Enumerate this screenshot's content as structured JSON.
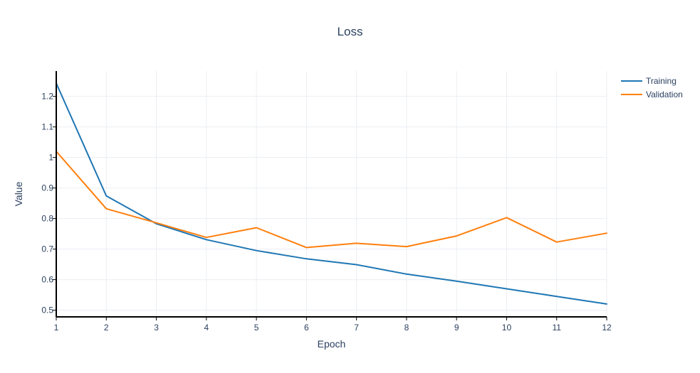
{
  "chart_data": {
    "type": "line",
    "title": "Loss",
    "xlabel": "Epoch",
    "ylabel": "Value",
    "x": [
      1,
      2,
      3,
      4,
      5,
      6,
      7,
      8,
      9,
      10,
      11,
      12
    ],
    "xlim": [
      1,
      12
    ],
    "ylim": [
      0.478,
      1.283
    ],
    "xticks": [
      "1",
      "2",
      "3",
      "4",
      "5",
      "6",
      "7",
      "8",
      "9",
      "10",
      "11",
      "12"
    ],
    "yticks": [
      0.5,
      0.6,
      0.7,
      0.8,
      0.9,
      1,
      1.1,
      1.2
    ],
    "ytick_labels": [
      "0.5",
      "0.6",
      "0.7",
      "0.8",
      "0.9",
      "1",
      "1.1",
      "1.2"
    ],
    "grid": true,
    "legend_position": "top-right",
    "series": [
      {
        "name": "Training",
        "color": "#1f77b4",
        "values": [
          1.243,
          0.874,
          0.783,
          0.731,
          0.695,
          0.668,
          0.649,
          0.618,
          0.595,
          0.57,
          0.545,
          0.52
        ]
      },
      {
        "name": "Validation",
        "color": "#ff7f0e",
        "values": [
          1.02,
          0.832,
          0.786,
          0.738,
          0.77,
          0.705,
          0.719,
          0.708,
          0.743,
          0.803,
          0.723,
          0.752
        ]
      }
    ]
  }
}
